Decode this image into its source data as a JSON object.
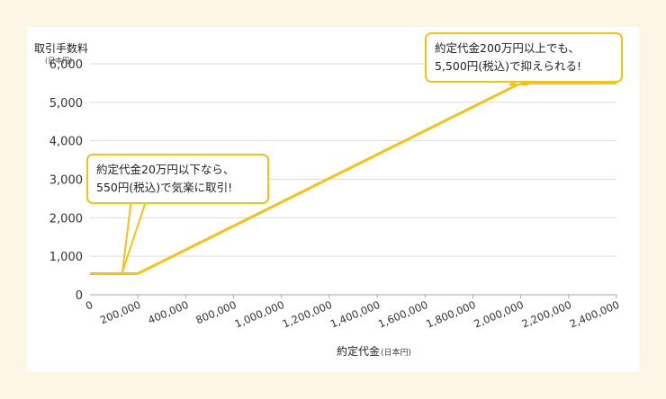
{
  "colors": {
    "line": "#f5c218",
    "grid": "#dddddd",
    "axis": "#aaaaaa",
    "text": "#333333",
    "background": "#fdf6e6"
  },
  "chart_data": {
    "type": "line",
    "ylabel": "取引手数料",
    "ylabel_unit": "(日本円)",
    "xlabel": "約定代金",
    "xlabel_unit": "(日本円)",
    "y_ticks": [
      0,
      1000,
      2000,
      3000,
      4000,
      5000,
      6000
    ],
    "y_tick_labels": [
      "0",
      "1,000",
      "2,000",
      "3,000",
      "4,000",
      "5,000",
      "6,000"
    ],
    "ylim": [
      0,
      6000
    ],
    "x_tick_labels": [
      "0",
      "200,000",
      "400,000",
      "800,000",
      "1,000,000",
      "1,200,000",
      "1,400,000",
      "1,600,000",
      "1,800,000",
      "2,000,000",
      "2,200,000",
      "2,400,000"
    ],
    "grid": true,
    "series": [
      {
        "points": [
          {
            "x": "0",
            "y": 550
          },
          {
            "x": "200,000",
            "y": 550
          },
          {
            "x": "2,000,000",
            "y": 5500
          },
          {
            "x": "2,400,000",
            "y": 5500
          }
        ]
      }
    ],
    "annotations": [
      {
        "line1": "約定代金20万円以下なら、",
        "line2": "550円(税込)で気楽に取引!",
        "x": "200,000",
        "y": 550
      },
      {
        "line1": "約定代金200万円以上でも、",
        "line2": "5,500円(税込)で抑えられる!",
        "x": "2,000,000",
        "y": 5500
      }
    ]
  }
}
